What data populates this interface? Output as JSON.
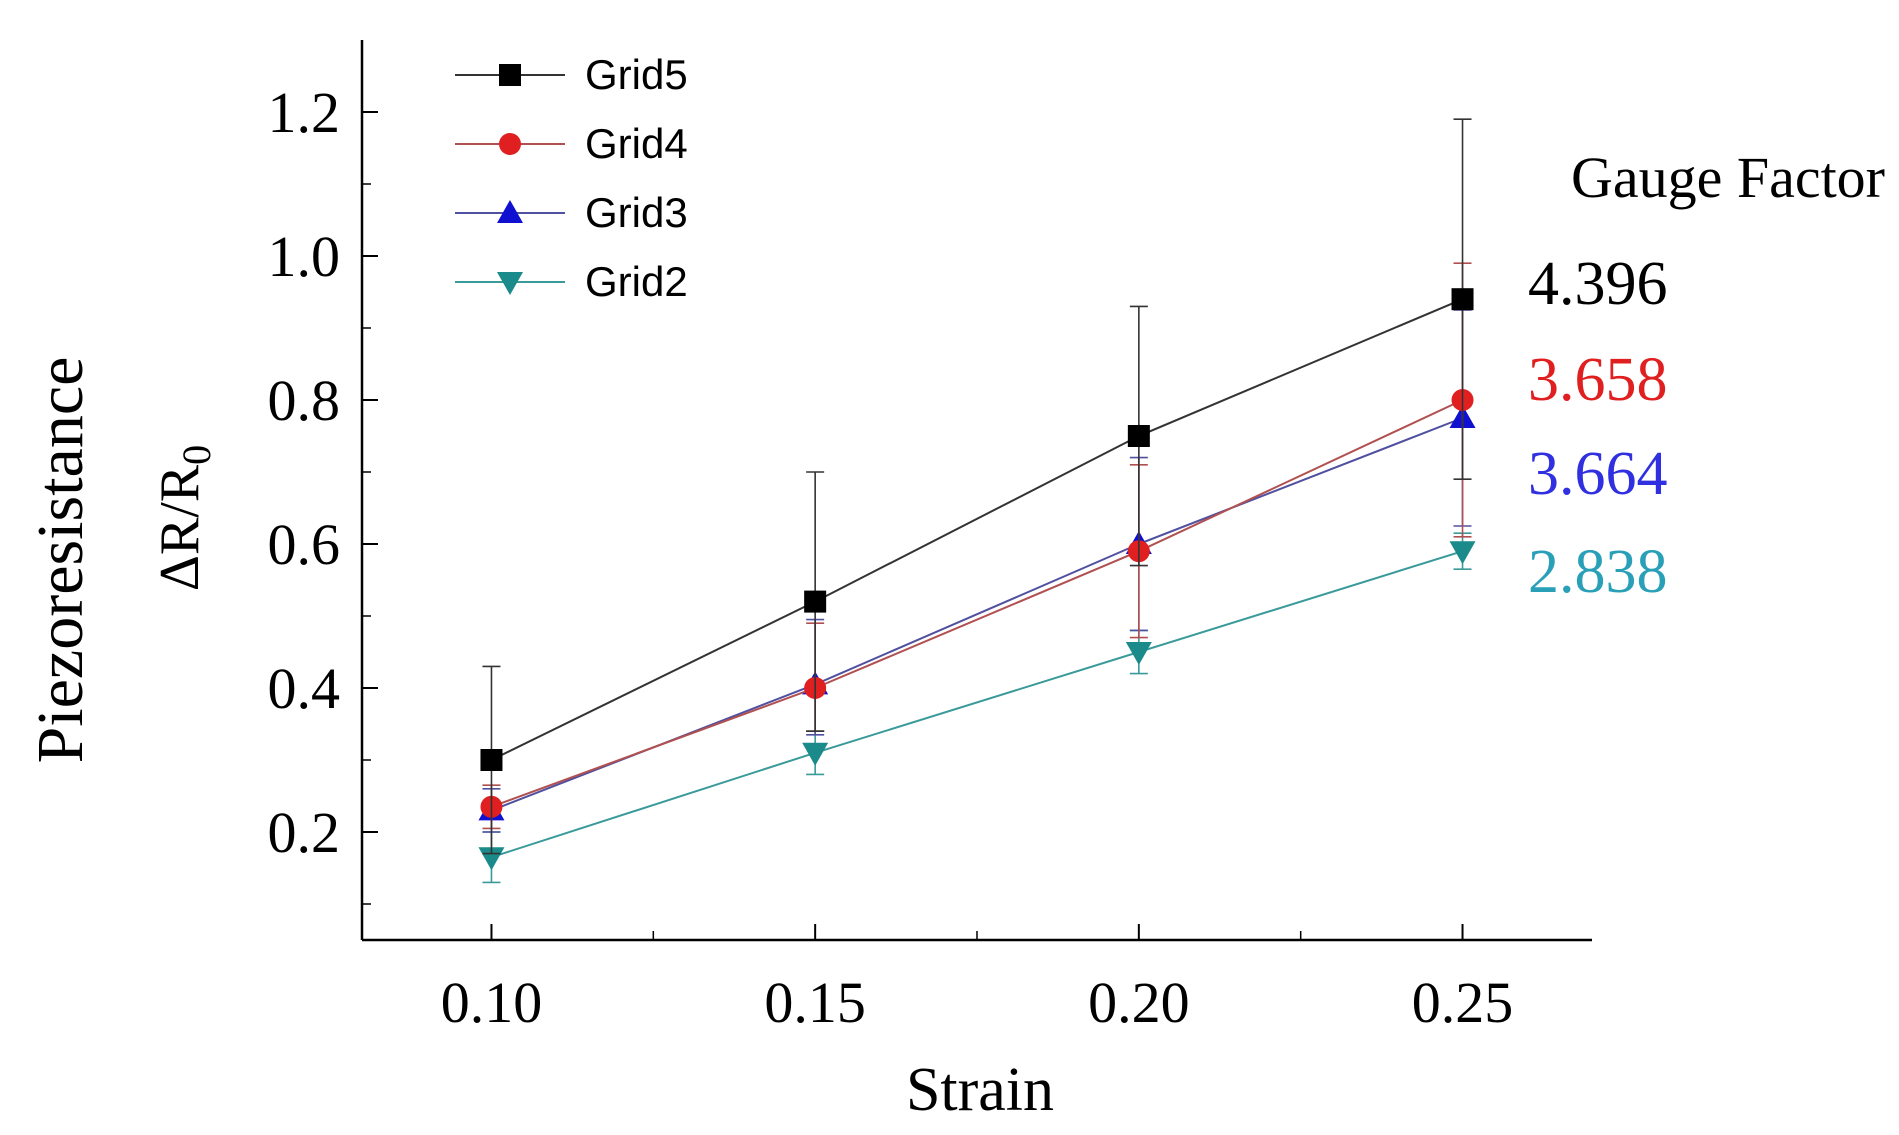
{
  "chart_data": {
    "type": "line",
    "title": "",
    "xlabel": "Strain",
    "ylabel_main": "Piezoresistance",
    "ylabel_expr": "ΔR/R",
    "ylabel_sub": "0",
    "xlim": [
      0.08,
      0.27
    ],
    "ylim": [
      0.05,
      1.3
    ],
    "x_ticks": [
      0.1,
      0.15,
      0.2,
      0.25
    ],
    "x_tick_labels": [
      "0.10",
      "0.15",
      "0.20",
      "0.25"
    ],
    "y_ticks": [
      0.2,
      0.4,
      0.6,
      0.8,
      1.0,
      1.2
    ],
    "y_tick_labels": [
      "0.2",
      "0.4",
      "0.6",
      "0.8",
      "1.0",
      "1.2"
    ],
    "x": [
      0.1,
      0.15,
      0.2,
      0.25
    ],
    "series": [
      {
        "name": "Grid5",
        "marker": "square",
        "color": "#000000",
        "line_color": "#333333",
        "values": [
          0.3,
          0.52,
          0.75,
          0.94
        ],
        "err_upper": [
          0.13,
          0.18,
          0.18,
          0.25
        ],
        "err_lower": [
          0.13,
          0.18,
          0.18,
          0.25
        ]
      },
      {
        "name": "Grid4",
        "marker": "circle",
        "color": "#e02020",
        "line_color": "#b05050",
        "values": [
          0.235,
          0.4,
          0.59,
          0.8
        ],
        "err_upper": [
          0.03,
          0.09,
          0.12,
          0.19
        ],
        "err_lower": [
          0.03,
          0.06,
          0.12,
          0.19
        ]
      },
      {
        "name": "Grid3",
        "marker": "triangle-up",
        "color": "#1010d0",
        "line_color": "#5050a0",
        "values": [
          0.23,
          0.405,
          0.6,
          0.775
        ],
        "err_upper": [
          0.03,
          0.09,
          0.12,
          0.15
        ],
        "err_lower": [
          0.03,
          0.07,
          0.12,
          0.15
        ]
      },
      {
        "name": "Grid2",
        "marker": "triangle-down",
        "color": "#1a8a8a",
        "line_color": "#3a9a9a",
        "values": [
          0.165,
          0.31,
          0.45,
          0.59
        ],
        "err_upper": [
          0.035,
          0.03,
          0.03,
          0.025
        ],
        "err_lower": [
          0.035,
          0.03,
          0.03,
          0.025
        ]
      }
    ],
    "legend": {
      "placement": "top-left",
      "entries": [
        "Grid5",
        "Grid4",
        "Grid3",
        "Grid2"
      ]
    },
    "annotation": {
      "title": "Gauge Factor",
      "values": [
        {
          "text": "4.396",
          "color": "#000000"
        },
        {
          "text": "3.658",
          "color": "#e02020"
        },
        {
          "text": "3.664",
          "color": "#3030e0"
        },
        {
          "text": "2.838",
          "color": "#2aa0b8"
        }
      ]
    }
  }
}
